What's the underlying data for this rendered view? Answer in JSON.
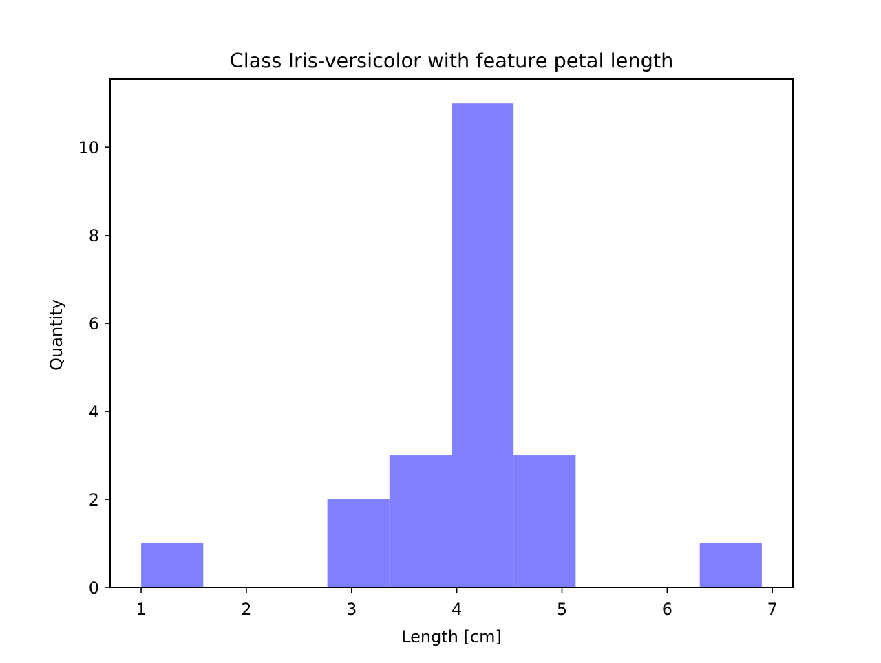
{
  "chart_data": {
    "type": "bar",
    "title": "Class Iris-versicolor with feature petal length",
    "xlabel": "Length [cm]",
    "ylabel": "Quantity",
    "xlim": [
      0.705,
      7.195
    ],
    "ylim": [
      0,
      11.55
    ],
    "grid": false,
    "bar_color": "#8080ff",
    "x_ticks": [
      1,
      2,
      3,
      4,
      5,
      6,
      7
    ],
    "y_ticks": [
      0,
      2,
      4,
      6,
      8,
      10
    ],
    "bins": [
      {
        "x0": 1.0,
        "x1": 1.59,
        "count": 1
      },
      {
        "x0": 1.59,
        "x1": 2.18,
        "count": 0
      },
      {
        "x0": 2.18,
        "x1": 2.77,
        "count": 0
      },
      {
        "x0": 2.77,
        "x1": 3.36,
        "count": 2
      },
      {
        "x0": 3.36,
        "x1": 3.95,
        "count": 3
      },
      {
        "x0": 3.95,
        "x1": 4.54,
        "count": 11
      },
      {
        "x0": 4.54,
        "x1": 5.13,
        "count": 3
      },
      {
        "x0": 5.13,
        "x1": 5.72,
        "count": 0
      },
      {
        "x0": 5.72,
        "x1": 6.31,
        "count": 0
      },
      {
        "x0": 6.31,
        "x1": 6.9,
        "count": 1
      }
    ]
  }
}
